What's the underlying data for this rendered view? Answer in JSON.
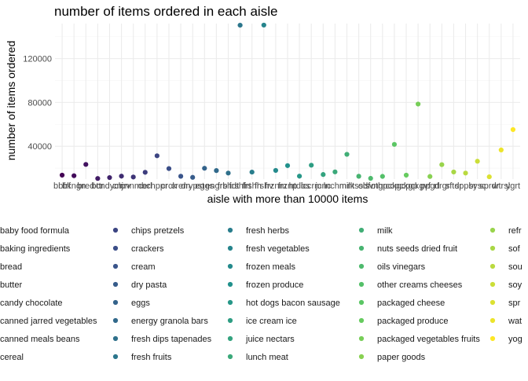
{
  "chart_data": {
    "type": "scatter",
    "title": "number of items ordered in each aisle",
    "xlabel": "aisle with more than 10000 items",
    "ylabel": "number of items ordered",
    "ylim": [
      10000,
      152000
    ],
    "y_ticks": [
      40000,
      80000,
      120000
    ],
    "y_tick_labels": [
      "40000",
      "80000",
      "120000"
    ],
    "grid": true,
    "legend_position": "bottom",
    "colormap": "viridis",
    "x_tick_labels": [
      "bbfrf",
      "bkngn",
      "bred",
      "bttr",
      "cndych",
      "cnjrv",
      "cnnmb",
      "cerl",
      "chppr",
      "crck",
      "crem",
      "drypst",
      "eggs",
      "engrb",
      "frshdt",
      "frshfrt",
      "frshh",
      "frshv",
      "frznm",
      "frznp",
      "htdbs",
      "iccrm",
      "jcnc",
      "lnchm",
      "milk",
      "ntssdf",
      "olsvng",
      "othrcc",
      "pckgc",
      "pckgp",
      "pckgvf",
      "ppgd",
      "rfrgr",
      "sftdr",
      "sppbr",
      "sysc",
      "sprdr",
      "wtrsl",
      "ygrt"
    ],
    "x_tick_display": [
      "bbfrf",
      "bkngn",
      "bred",
      "bttr",
      "cndych",
      "cnjrv",
      "cnnmb",
      "cerl",
      "chppr",
      "crck",
      "crem",
      "drypst",
      "eggs",
      "engrb",
      "frshdt",
      "frshfrt",
      "frshh",
      "frshv",
      "frznm",
      "frznp",
      "htdbs",
      "iccrm",
      "jcnc",
      "lnchm",
      "milk",
      "ntssdf",
      "olsvng",
      "othrcc",
      "pckgc",
      "pckgp",
      "pckgvf",
      "ppgd",
      "rfrgr",
      "sftdr",
      "sppbr",
      "sysc",
      "sprdr",
      "wtrsl",
      "ygrt"
    ],
    "categories": [
      "baby food formula",
      "baking ingredients",
      "bread",
      "butter",
      "candy chocolate",
      "canned jarred vegetables",
      "canned meals beans",
      "cereal",
      "chips pretzels",
      "crackers",
      "cream",
      "dry pasta",
      "eggs",
      "energy granola bars",
      "fresh dips tapenades",
      "fresh fruits",
      "fresh herbs",
      "fresh vegetables",
      "frozen meals",
      "frozen produce",
      "hot dogs bacon sausage",
      "ice cream ice",
      "juice nectars",
      "lunch meat",
      "milk",
      "nuts seeds dried fruit",
      "oils vinegars",
      "other creams cheeses",
      "packaged cheese",
      "packaged produce",
      "packaged vegetables fruits",
      "paper goods",
      "refrigerated",
      "soft drinks",
      "soup broth bouillon",
      "soy lactosefree",
      "spreads",
      "water seltzer sparkling water",
      "yogurt"
    ],
    "legend_labels": [
      "baby food formula",
      "baking ingredients",
      "bread",
      "butter",
      "candy chocolate",
      "canned jarred vegetables",
      "canned meals beans",
      "cereal",
      "chips pretzels",
      "crackers",
      "cream",
      "dry pasta",
      "eggs",
      "energy granola bars",
      "fresh dips tapenades",
      "fresh fruits",
      "fresh herbs",
      "fresh vegetables",
      "frozen meals",
      "frozen produce",
      "hot dogs bacon sausage",
      "ice cream ice",
      "juice nectars",
      "lunch meat",
      "milk",
      "nuts seeds dried fruit",
      "oils vinegars",
      "other creams cheeses",
      "packaged cheese",
      "packaged produce",
      "packaged vegetables fruits",
      "paper goods",
      "refr",
      "sof",
      "sou",
      "soy",
      "spr",
      "wat",
      "yog"
    ],
    "values": [
      13600,
      13100,
      23400,
      10600,
      11400,
      12700,
      11900,
      16200,
      31300,
      19600,
      12600,
      11600,
      19900,
      17800,
      15500,
      150500,
      16400,
      150600,
      17900,
      22300,
      12700,
      22700,
      14200,
      16600,
      32600,
      12600,
      10700,
      12500,
      41700,
      13600,
      78500,
      12400,
      23200,
      16500,
      15500,
      26300,
      12100,
      36600,
      55200
    ]
  }
}
